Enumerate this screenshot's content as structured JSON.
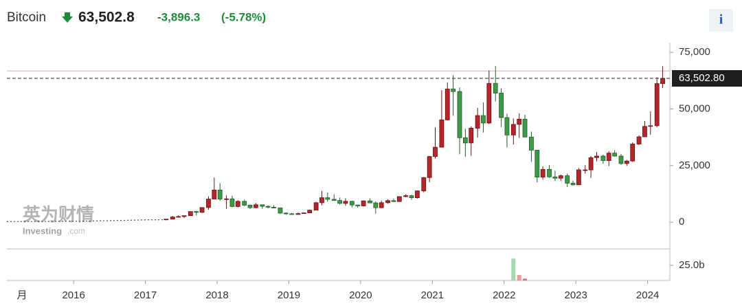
{
  "header": {
    "name": "Bitcoin",
    "price": "63,502.8",
    "change": "-3,896.3",
    "change_pct": "(-5.78%)",
    "info_button": "i"
  },
  "watermark": {
    "brand": "英为财情",
    "site": "Investing",
    "domain": ".com"
  },
  "chart_data": {
    "type": "candlestick",
    "interval": "月",
    "up_color": "#b3262b",
    "down_color": "#3f9a48",
    "x": [
      2017.29,
      2017.38,
      2017.46,
      2017.54,
      2017.63,
      2017.71,
      2017.79,
      2017.88,
      2017.96,
      2018.04,
      2018.13,
      2018.21,
      2018.29,
      2018.38,
      2018.46,
      2018.54,
      2018.63,
      2018.71,
      2018.79,
      2018.88,
      2018.96,
      2019.04,
      2019.13,
      2019.21,
      2019.29,
      2019.38,
      2019.46,
      2019.54,
      2019.63,
      2019.71,
      2019.79,
      2019.88,
      2019.96,
      2020.04,
      2020.13,
      2020.21,
      2020.29,
      2020.38,
      2020.46,
      2020.54,
      2020.63,
      2020.71,
      2020.79,
      2020.88,
      2020.96,
      2021.04,
      2021.13,
      2021.21,
      2021.29,
      2021.38,
      2021.46,
      2021.54,
      2021.63,
      2021.71,
      2021.79,
      2021.88,
      2021.96,
      2022.04,
      2022.13,
      2022.21,
      2022.29,
      2022.38,
      2022.46,
      2022.54,
      2022.63,
      2022.71,
      2022.79,
      2022.88,
      2022.96,
      2023.04,
      2023.13,
      2023.21,
      2023.29,
      2023.38,
      2023.46,
      2023.54,
      2023.63,
      2023.71,
      2023.79,
      2023.88,
      2023.96,
      2024.04,
      2024.13,
      2024.21
    ],
    "open": [
      1070,
      1350,
      2300,
      2480,
      2870,
      4700,
      4340,
      6470,
      10200,
      14200,
      10200,
      10300,
      6900,
      9200,
      7500,
      6400,
      7700,
      7000,
      6600,
      6300,
      4000,
      3700,
      3400,
      3800,
      4100,
      5300,
      8600,
      10800,
      10100,
      9600,
      8300,
      9200,
      7600,
      7200,
      9400,
      8500,
      6400,
      8600,
      9500,
      9100,
      11300,
      11700,
      10800,
      13800,
      19700,
      29000,
      33100,
      45200,
      58800,
      57700,
      37300,
      35000,
      41500,
      47100,
      43800,
      61300,
      57000,
      46200,
      38500,
      43200,
      45500,
      37600,
      31800,
      19900,
      23300,
      20000,
      19400,
      20500,
      17200,
      16500,
      23100,
      23100,
      28500,
      29200,
      27200,
      30500,
      29200,
      25900,
      27000,
      34500,
      37700,
      42300,
      42600,
      61200
    ],
    "high": [
      1350,
      2760,
      2980,
      2900,
      4700,
      4980,
      6470,
      11400,
      19700,
      17200,
      11800,
      11700,
      9700,
      10000,
      7800,
      8500,
      7800,
      7400,
      7500,
      6500,
      4300,
      4100,
      4200,
      4100,
      5600,
      9000,
      13800,
      13100,
      12300,
      10900,
      10500,
      9500,
      7700,
      9600,
      10500,
      9200,
      9500,
      10100,
      10400,
      11400,
      12400,
      12100,
      14000,
      19900,
      29300,
      41900,
      58300,
      61700,
      64900,
      59500,
      41300,
      42300,
      50500,
      52900,
      67000,
      69000,
      59100,
      47900,
      45800,
      48100,
      47400,
      40000,
      31900,
      24600,
      25200,
      22700,
      21000,
      21400,
      18300,
      23900,
      25200,
      29200,
      31000,
      29800,
      31400,
      31800,
      30100,
      27500,
      35200,
      38400,
      44700,
      48900,
      64000,
      68900
    ],
    "low": [
      1060,
      1350,
      2100,
      1830,
      2700,
      2970,
      4100,
      5500,
      10800,
      9400,
      5900,
      6600,
      6500,
      7100,
      5800,
      6100,
      5900,
      6100,
      6100,
      3600,
      3200,
      3400,
      3400,
      3700,
      4100,
      5300,
      7500,
      9100,
      9400,
      7800,
      7300,
      6500,
      6400,
      6900,
      8500,
      3800,
      6200,
      8100,
      8900,
      9000,
      11000,
      9900,
      10400,
      13200,
      17600,
      28100,
      33100,
      44900,
      47000,
      30000,
      28800,
      29300,
      37300,
      39600,
      43300,
      53300,
      42000,
      33000,
      34300,
      37200,
      37700,
      26700,
      17600,
      18800,
      19600,
      18200,
      18200,
      15500,
      16300,
      16500,
      21400,
      19600,
      26900,
      25800,
      24800,
      28900,
      25300,
      24900,
      26600,
      34100,
      37700,
      38600,
      41900,
      59200
    ],
    "close": [
      1350,
      2300,
      2480,
      2870,
      4700,
      4340,
      6470,
      10200,
      14200,
      10200,
      10300,
      6900,
      9200,
      7500,
      6400,
      7700,
      7000,
      6600,
      6300,
      4000,
      3700,
      3400,
      3800,
      4100,
      5300,
      8600,
      10800,
      10100,
      9600,
      8300,
      9200,
      7600,
      7200,
      9400,
      8500,
      6400,
      8600,
      9500,
      9100,
      11300,
      11700,
      10800,
      13800,
      19700,
      29000,
      33100,
      45200,
      58800,
      57700,
      37300,
      35000,
      41500,
      47100,
      43800,
      61300,
      57000,
      46200,
      38500,
      43200,
      45500,
      37600,
      31800,
      19900,
      23300,
      20000,
      19400,
      20500,
      17200,
      16500,
      23100,
      23100,
      28500,
      29200,
      27200,
      30500,
      29200,
      25900,
      27000,
      34500,
      37700,
      42300,
      42600,
      61200,
      63502.8
    ],
    "early_line": {
      "x": [
        2015.07,
        2015.5,
        2016,
        2016.5,
        2017,
        2017.29
      ],
      "values": [
        250,
        300,
        420,
        650,
        1000,
        1070
      ],
      "color": "#555555"
    },
    "last_price": {
      "value": 63502.8,
      "label": "63,502.80"
    },
    "high_line": {
      "value": 66800,
      "color": "#f0a8ae"
    },
    "xlim": [
      2015.07,
      2024.31
    ],
    "xticks": [
      2016,
      2017,
      2018,
      2019,
      2020,
      2021,
      2022,
      2023,
      2024
    ],
    "ylim": [
      -11800,
      79300
    ],
    "yticks": [
      0,
      {
        "value": 25000,
        "label": "25,000"
      },
      {
        "value": 50000,
        "label": "50,000"
      },
      {
        "value": 75000,
        "label": "75,000"
      }
    ],
    "volume": {
      "x": [
        2022.13,
        2022.21,
        2022.29
      ],
      "values": [
        36,
        9,
        3
      ],
      "colors": [
        "#a6d8ae",
        "#ee9a9e",
        "#e07078"
      ]
    },
    "y2lim": [
      0,
      52
    ],
    "y2ticks": [
      {
        "value": 25,
        "label": "25.0b"
      }
    ]
  }
}
